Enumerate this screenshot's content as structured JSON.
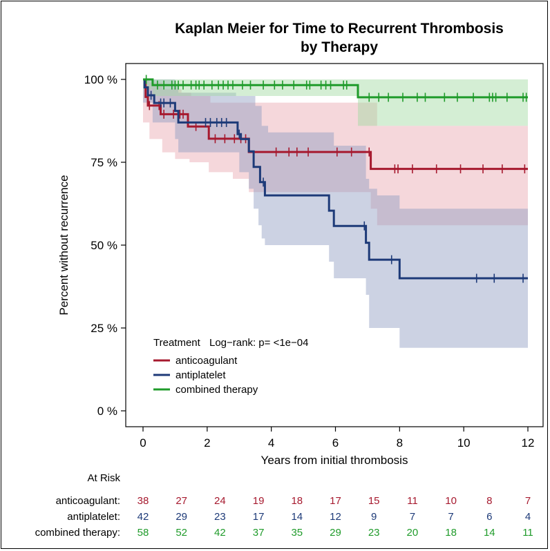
{
  "chart_data": {
    "type": "line",
    "title": "Kaplan Meier for Time to Recurrent Thrombosis",
    "subtitle": "by Therapy",
    "xlabel": "Years from initial thrombosis",
    "ylabel": "Percent without recurrence",
    "xlim": [
      0,
      12
    ],
    "ylim": [
      0,
      100
    ],
    "x_ticks": [
      0,
      2,
      4,
      6,
      8,
      10,
      12
    ],
    "y_ticks": [
      0,
      25,
      50,
      75,
      100
    ],
    "y_tick_labels": [
      "0 %",
      "25 %",
      "50 %",
      "75 %",
      "100 %"
    ],
    "legend": {
      "title": "Treatment",
      "test_label": "Log−rank: p= <1e−04",
      "placement": "bottom-left"
    },
    "series": [
      {
        "name": "anticoagulant",
        "color": "#a6192e",
        "band_color": "#e8a7b0",
        "steps": [
          [
            0,
            100
          ],
          [
            0.08,
            94.7
          ],
          [
            0.15,
            92.1
          ],
          [
            0.55,
            89.5
          ],
          [
            1.4,
            85.8
          ],
          [
            2.05,
            82.1
          ],
          [
            3.3,
            78.1
          ],
          [
            7.1,
            73.0
          ],
          [
            12,
            73.0
          ]
        ],
        "lower": [
          [
            0,
            87
          ],
          [
            0.08,
            87
          ],
          [
            0.2,
            82
          ],
          [
            0.6,
            78
          ],
          [
            1.0,
            76
          ],
          [
            1.45,
            75
          ],
          [
            2.05,
            72
          ],
          [
            2.8,
            70
          ],
          [
            3.3,
            66
          ],
          [
            7.1,
            61
          ],
          [
            7.3,
            56
          ],
          [
            12,
            56
          ]
        ],
        "upper": [
          [
            0,
            100
          ],
          [
            0.1,
            100
          ],
          [
            0.2,
            99
          ],
          [
            0.6,
            97
          ],
          [
            1.2,
            96
          ],
          [
            1.5,
            95
          ],
          [
            2.1,
            93
          ],
          [
            7.1,
            93
          ],
          [
            7.3,
            86
          ],
          [
            12,
            86
          ]
        ],
        "censor": [
          0.2,
          0.5,
          0.65,
          0.95,
          1.15,
          1.25,
          1.65,
          2.25,
          2.55,
          2.85,
          3.05,
          3.2,
          4.15,
          4.55,
          4.8,
          5.15,
          6.05,
          6.5,
          7.05,
          7.85,
          7.95,
          8.4,
          9.15,
          9.9,
          10.6,
          11.2,
          11.9
        ]
      },
      {
        "name": "antiplatelet",
        "color": "#1d3a78",
        "band_color": "#8e9cc0",
        "steps": [
          [
            0,
            100
          ],
          [
            0.05,
            97.6
          ],
          [
            0.15,
            95.2
          ],
          [
            0.35,
            92.9
          ],
          [
            1.0,
            90.5
          ],
          [
            1.1,
            87.0
          ],
          [
            2.95,
            83.5
          ],
          [
            3.05,
            82.0
          ],
          [
            3.3,
            78.3
          ],
          [
            3.45,
            73.6
          ],
          [
            3.65,
            69.0
          ],
          [
            3.8,
            65.0
          ],
          [
            5.8,
            60.4
          ],
          [
            5.95,
            55.8
          ],
          [
            6.95,
            50.7
          ],
          [
            7.05,
            45.6
          ],
          [
            8.0,
            40.0
          ],
          [
            12,
            40.0
          ]
        ],
        "lower": [
          [
            0,
            93
          ],
          [
            0.1,
            93
          ],
          [
            0.3,
            87
          ],
          [
            1.0,
            82
          ],
          [
            1.1,
            78
          ],
          [
            1.5,
            78
          ],
          [
            3.0,
            72
          ],
          [
            3.3,
            67
          ],
          [
            3.45,
            61
          ],
          [
            3.6,
            56
          ],
          [
            3.7,
            52
          ],
          [
            3.8,
            50
          ],
          [
            5.8,
            45
          ],
          [
            5.95,
            40
          ],
          [
            6.95,
            35
          ],
          [
            7.05,
            25
          ],
          [
            8.0,
            19
          ],
          [
            12,
            19
          ]
        ],
        "upper": [
          [
            0,
            100
          ],
          [
            0.1,
            100
          ],
          [
            0.5,
            100
          ],
          [
            1.0,
            98
          ],
          [
            1.1,
            96
          ],
          [
            1.5,
            96
          ],
          [
            2.9,
            95
          ],
          [
            3.4,
            95
          ],
          [
            3.5,
            92
          ],
          [
            3.7,
            86
          ],
          [
            3.9,
            84
          ],
          [
            5.8,
            84
          ],
          [
            5.95,
            80
          ],
          [
            6.95,
            70
          ],
          [
            7.05,
            67
          ],
          [
            7.3,
            65
          ],
          [
            8.0,
            61
          ],
          [
            12,
            61
          ]
        ],
        "censor": [
          0.25,
          0.55,
          0.65,
          0.85,
          1.95,
          2.1,
          2.3,
          2.45,
          2.6,
          3.0,
          3.75,
          6.9,
          7.75,
          10.4,
          10.95,
          11.85
        ]
      },
      {
        "name": "combined therapy",
        "color": "#1f9b2a",
        "band_color": "#9fd99f",
        "steps": [
          [
            0,
            100
          ],
          [
            0.3,
            98.3
          ],
          [
            6.7,
            94.6
          ],
          [
            12,
            94.6
          ]
        ],
        "lower": [
          [
            0,
            97
          ],
          [
            0.3,
            95
          ],
          [
            6.7,
            86
          ],
          [
            12,
            86
          ]
        ],
        "upper": [
          [
            0,
            100
          ],
          [
            12,
            100
          ]
        ],
        "censor": [
          0.1,
          0.45,
          0.65,
          0.9,
          1.0,
          1.1,
          1.25,
          1.5,
          1.65,
          1.75,
          1.9,
          2.15,
          2.35,
          2.5,
          2.65,
          2.8,
          3.1,
          3.35,
          3.75,
          4.1,
          4.35,
          4.7,
          5.1,
          5.2,
          5.55,
          5.7,
          5.85,
          6.25,
          6.35,
          7.05,
          7.35,
          7.65,
          8.1,
          8.55,
          8.8,
          9.4,
          9.8,
          10.3,
          10.8,
          10.9,
          11.0,
          11.35,
          11.85,
          11.95
        ]
      }
    ],
    "at_risk": {
      "title": "At Risk",
      "times": [
        0,
        1.2,
        2.4,
        3.6,
        4.8,
        6.0,
        7.2,
        8.4,
        9.6,
        10.8,
        12.0
      ],
      "rows": [
        {
          "label": "anticoagulant:",
          "color": "#a6192e",
          "counts": [
            "38",
            "27",
            "24",
            "19",
            "18",
            "17",
            "15",
            "11",
            "10",
            "8",
            "7"
          ]
        },
        {
          "label": "antiplatelet:",
          "color": "#1d3a78",
          "counts": [
            "42",
            "29",
            "23",
            "17",
            "14",
            "12",
            "9",
            "7",
            "7",
            "6",
            "4"
          ]
        },
        {
          "label": "combined therapy:",
          "color": "#1f9b2a",
          "counts": [
            "58",
            "52",
            "42",
            "37",
            "35",
            "29",
            "23",
            "20",
            "18",
            "14",
            "11"
          ]
        }
      ]
    }
  }
}
